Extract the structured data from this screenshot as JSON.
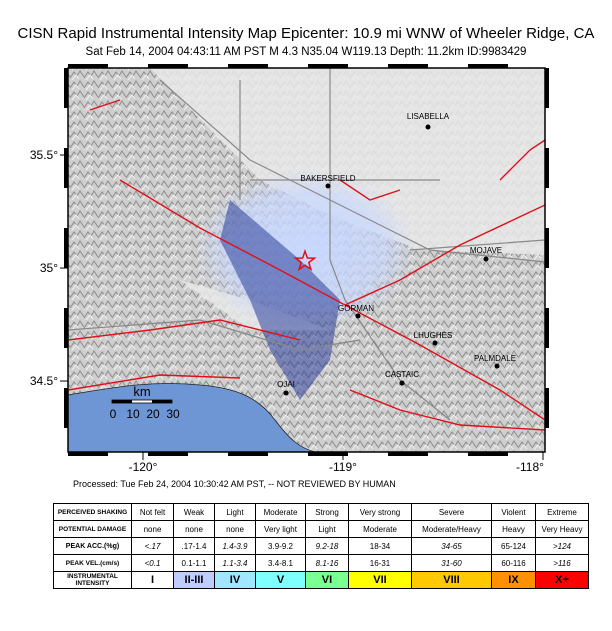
{
  "header": {
    "title": "CISN Rapid Instrumental Intensity Map Epicenter: 10.9 mi WNW of Wheeler Ridge, CA",
    "subtitle": "Sat Feb 14, 2004 04:43:11 AM PST   M 4.3   N35.04 W119.13   Depth: 11.2km   ID:9983429"
  },
  "map": {
    "lon_range": [
      -120.375,
      -117.99
    ],
    "lat_range": [
      34.186,
      35.885
    ],
    "lat_ticks": [
      {
        "value": 35.5,
        "label": "35.5°"
      },
      {
        "value": 35,
        "label": "35°"
      },
      {
        "value": 34.5,
        "label": "34.5°"
      }
    ],
    "lon_ticks": [
      {
        "value": -120,
        "label": "-120°"
      },
      {
        "value": -119,
        "label": "-119°"
      },
      {
        "value": -118,
        "label": "-118°"
      }
    ],
    "epicenter": {
      "lon": -119.19,
      "lat": 35.03
    },
    "cities": [
      {
        "name": "LISABELLA",
        "lon": -118.575,
        "lat": 35.624
      },
      {
        "name": "BAKERSFIELD",
        "lon": -119.075,
        "lat": 35.363
      },
      {
        "name": "MOJAVE",
        "lon": -118.285,
        "lat": 35.04
      },
      {
        "name": "GORMAN",
        "lon": -118.925,
        "lat": 34.788
      },
      {
        "name": "LHUGHES",
        "lon": -118.54,
        "lat": 34.668
      },
      {
        "name": "PALMDALE",
        "lon": -118.23,
        "lat": 34.566
      },
      {
        "name": "CASTAIC",
        "lon": -118.705,
        "lat": 34.491
      },
      {
        "name": "OJAI",
        "lon": -119.285,
        "lat": 34.447
      }
    ],
    "scale": {
      "unit": "km",
      "ticks": [
        "0",
        "10",
        "20",
        "30"
      ]
    }
  },
  "footer": {
    "processed": "Processed: Tue Feb 24, 2004 10:30:42 AM PST, -- NOT REVIEWED BY HUMAN"
  },
  "table": {
    "rows": [
      [
        "PERCEIVED SHAKING",
        "Not felt",
        "Weak",
        "Light",
        "Moderate",
        "Strong",
        "Very strong",
        "Severe",
        "Violent",
        "Extreme"
      ],
      [
        "POTENTIAL DAMAGE",
        "none",
        "none",
        "none",
        "Very light",
        "Light",
        "Moderate",
        "Moderate/Heavy",
        "Heavy",
        "Very Heavy"
      ],
      [
        "PEAK ACC.(%g)",
        "<.17",
        ".17-1.4",
        "1.4-3.9",
        "3.9-9.2",
        "9.2-18",
        "18-34",
        "34-65",
        "65-124",
        ">124"
      ],
      [
        "PEAK VEL.(cm/s)",
        "<0.1",
        "0.1-1.1",
        "1.1-3.4",
        "3.4-8.1",
        "8.1-16",
        "16-31",
        "31-60",
        "60-116",
        ">116"
      ],
      [
        "INSTRUMENTAL INTENSITY",
        "I",
        "II-III",
        "IV",
        "V",
        "VI",
        "VII",
        "VIII",
        "IX",
        "X+"
      ]
    ],
    "intensity_colors": [
      "#ffffff",
      "#bfccff",
      "#a0e6ff",
      "#80ffff",
      "#7aff93",
      "#ffff00",
      "#ffc800",
      "#ff9100",
      "#ff0000"
    ]
  }
}
